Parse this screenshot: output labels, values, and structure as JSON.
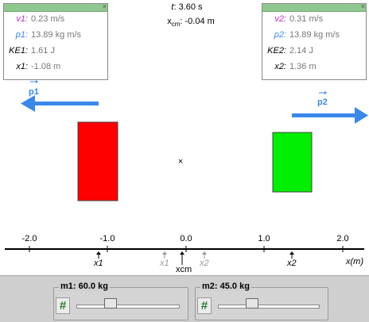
{
  "top": {
    "time_label": "t",
    "time_value": ": 3.60 s",
    "xcm_label": "x",
    "xcm_sub": "cm",
    "xcm_value": ": -0.04 m"
  },
  "panel1": {
    "close": "×",
    "v_label": "v1:",
    "v_value": "0.23 m/s",
    "p_label": "p1:",
    "p_value": "13.89 kg m/s",
    "ke_label": "KE1:",
    "ke_value": "1.61 J",
    "x_label": "x1:",
    "x_value": "-1.08 m"
  },
  "panel2": {
    "close": "×",
    "v_label": "v2:",
    "v_value": "0.31 m/s",
    "p_label": "p2:",
    "p_value": "13.89 kg m/s",
    "ke_label": "KE2:",
    "ke_value": "2.14 J",
    "x_label": "x2:",
    "x_value": "1.36 m"
  },
  "vectors": {
    "p1": "p1",
    "p2": "p2"
  },
  "colors": {
    "block1": "#ff0000",
    "block2": "#00ee00",
    "arrow": "#3a88e8",
    "panel_bar": "#8fc88f"
  },
  "axis": {
    "ticks": [
      "-2.0",
      "-1.0",
      "0.0",
      "1.0",
      "2.0"
    ],
    "unit": "x(m)",
    "markers": {
      "x1": "x1",
      "x1_initial": "x1",
      "xcm": "xcm",
      "x2_initial": "x2",
      "x2": "x2"
    },
    "cm_marker": "×"
  },
  "controls": {
    "m1_label": "m1: 60.0 kg",
    "m1_fraction": 0.33,
    "m2_label": "m2: 45.0 kg",
    "m2_fraction": 0.33,
    "hash_icon": "#"
  }
}
